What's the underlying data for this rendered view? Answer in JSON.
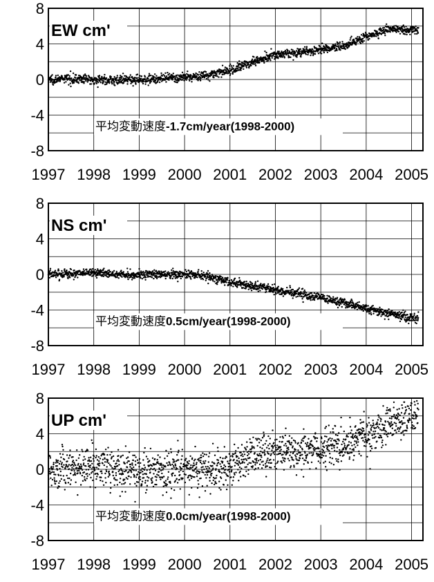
{
  "chart_data": [
    {
      "type": "scatter",
      "title": "",
      "panel_label": "EW cm'",
      "annotation": {
        "prefix": "平均変動速度",
        "rate": "-1.7cm/year(1998-2000)"
      },
      "xlim": [
        1997,
        2005.25
      ],
      "ylim": [
        -8,
        8
      ],
      "yticks": [
        8,
        4,
        0,
        -4,
        -8
      ],
      "xticks": [
        "1997",
        "1998",
        "1999",
        "2000",
        "2001",
        "2002",
        "2003",
        "2004",
        "2005"
      ],
      "grid": true,
      "series": [
        {
          "points": [
            [
              1997.0,
              0.0
            ],
            [
              1997.5,
              0.1
            ],
            [
              1998.0,
              0.0
            ],
            [
              1998.5,
              -0.1
            ],
            [
              1999.0,
              0.0
            ],
            [
              1999.5,
              0.1
            ],
            [
              2000.0,
              0.2
            ],
            [
              2000.5,
              0.5
            ],
            [
              2001.0,
              1.0
            ],
            [
              2001.5,
              2.0
            ],
            [
              2002.0,
              2.8
            ],
            [
              2002.5,
              3.0
            ],
            [
              2003.0,
              3.3
            ],
            [
              2003.5,
              3.8
            ],
            [
              2004.0,
              4.8
            ],
            [
              2004.5,
              5.7
            ],
            [
              2005.0,
              5.6
            ],
            [
              2005.15,
              5.5
            ]
          ],
          "noise": 0.25
        }
      ]
    },
    {
      "type": "scatter",
      "title": "",
      "panel_label": "NS cm'",
      "annotation": {
        "prefix": "平均変動速度",
        "rate": "0.5cm/year(1998-2000)"
      },
      "xlim": [
        1997,
        2005.25
      ],
      "ylim": [
        -8,
        8
      ],
      "yticks": [
        8,
        4,
        0,
        -4,
        -8
      ],
      "xticks": [
        "1997",
        "1998",
        "1999",
        "2000",
        "2001",
        "2002",
        "2003",
        "2004",
        "2005"
      ],
      "grid": true,
      "series": [
        {
          "points": [
            [
              1997.0,
              0.0
            ],
            [
              1997.5,
              0.1
            ],
            [
              1998.0,
              0.2
            ],
            [
              1998.5,
              0.0
            ],
            [
              1999.0,
              0.0
            ],
            [
              1999.5,
              0.0
            ],
            [
              2000.0,
              0.0
            ],
            [
              2000.5,
              -0.2
            ],
            [
              2001.0,
              -0.9
            ],
            [
              2001.5,
              -1.3
            ],
            [
              2002.0,
              -1.7
            ],
            [
              2002.5,
              -2.2
            ],
            [
              2003.0,
              -2.6
            ],
            [
              2003.5,
              -3.2
            ],
            [
              2004.0,
              -3.8
            ],
            [
              2004.5,
              -4.4
            ],
            [
              2005.0,
              -4.9
            ],
            [
              2005.15,
              -4.9
            ]
          ],
          "noise": 0.25
        }
      ]
    },
    {
      "type": "scatter",
      "title": "",
      "panel_label": "UP cm'",
      "annotation": {
        "prefix": "平均変動速度",
        "rate": "0.0cm/year(1998-2000)"
      },
      "xlim": [
        1997,
        2005.25
      ],
      "ylim": [
        -8,
        8
      ],
      "yticks": [
        8,
        4,
        0,
        -4,
        -8
      ],
      "xticks": [
        "1997",
        "1998",
        "1999",
        "2000",
        "2001",
        "2002",
        "2003",
        "2004",
        "2005"
      ],
      "grid": true,
      "series": [
        {
          "points": [
            [
              1997.0,
              0.0
            ],
            [
              1997.5,
              0.2
            ],
            [
              1998.0,
              0.4
            ],
            [
              1998.5,
              0.0
            ],
            [
              1999.0,
              0.0
            ],
            [
              1999.5,
              -0.2
            ],
            [
              2000.0,
              0.0
            ],
            [
              2000.5,
              0.0
            ],
            [
              2001.0,
              0.3
            ],
            [
              2001.5,
              1.3
            ],
            [
              2002.0,
              2.0
            ],
            [
              2002.5,
              2.2
            ],
            [
              2003.0,
              2.5
            ],
            [
              2003.5,
              2.8
            ],
            [
              2004.0,
              3.8
            ],
            [
              2004.5,
              5.0
            ],
            [
              2005.0,
              6.0
            ],
            [
              2005.15,
              6.5
            ]
          ],
          "noise": 1.1
        }
      ]
    }
  ]
}
